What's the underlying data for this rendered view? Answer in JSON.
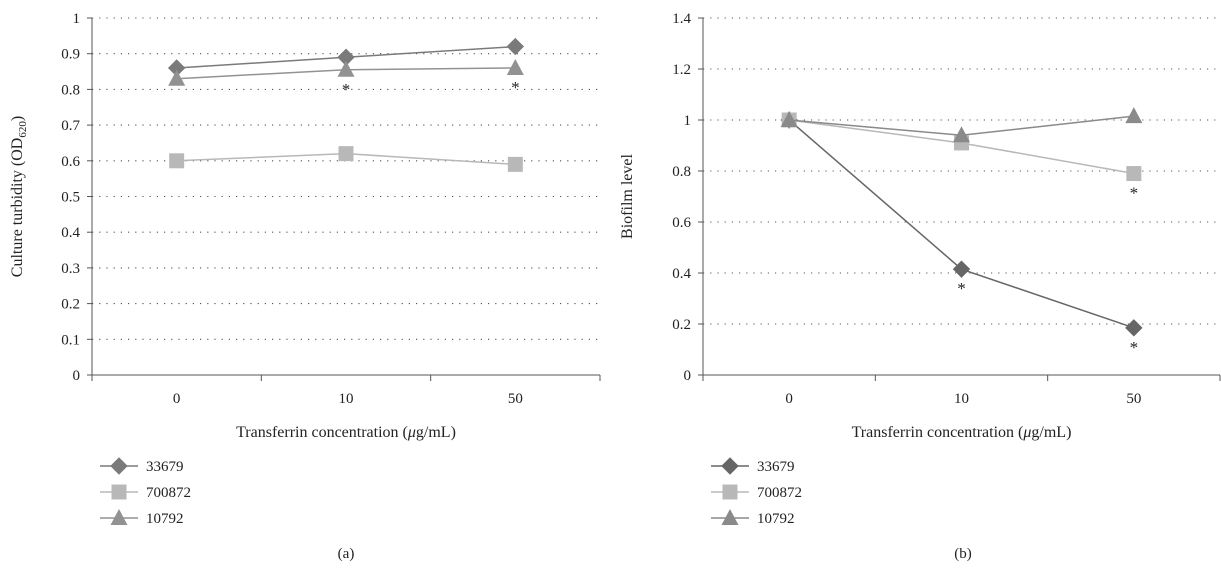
{
  "chart_data": [
    {
      "type": "line",
      "panel_label": "(a)",
      "categories": [
        "0",
        "10",
        "50"
      ],
      "xlabel": "Transferrin concentration (μg/mL)",
      "ylabel": "Culture turbidity (OD620)",
      "ylabel_parts": {
        "main": "Culture turbidity (OD",
        "sub": "620",
        "close": ")"
      },
      "ylim": [
        0,
        1
      ],
      "yticks": [
        "0",
        "0.1",
        "0.2",
        "0.3",
        "0.4",
        "0.5",
        "0.6",
        "0.7",
        "0.8",
        "0.9",
        "1"
      ],
      "grid": "horizontal dotted",
      "legend_position": "bottom-left",
      "series": [
        {
          "name": "33679",
          "marker": "diamond",
          "color": "#7a7a7a",
          "values": [
            0.86,
            0.89,
            0.92
          ],
          "significant": [
            false,
            false,
            false
          ]
        },
        {
          "name": "700872",
          "marker": "square",
          "color": "#b8b8b8",
          "values": [
            0.6,
            0.62,
            0.59
          ],
          "significant": [
            false,
            false,
            false
          ]
        },
        {
          "name": "10792",
          "marker": "triangle",
          "color": "#929292",
          "values": [
            0.83,
            0.855,
            0.86
          ],
          "significant": [
            false,
            true,
            true
          ]
        }
      ],
      "significance_mark": "*"
    },
    {
      "type": "line",
      "panel_label": "(b)",
      "categories": [
        "0",
        "10",
        "50"
      ],
      "xlabel": "Transferrin concentration (μg/mL)",
      "ylabel": "Biofilm level",
      "ylim": [
        0,
        1.4
      ],
      "yticks": [
        "0",
        "0.2",
        "0.4",
        "0.6",
        "0.8",
        "1",
        "1.2",
        "1.4"
      ],
      "grid": "horizontal dotted",
      "legend_position": "bottom-left",
      "series": [
        {
          "name": "33679",
          "marker": "diamond",
          "color": "#666666",
          "values": [
            1.0,
            0.415,
            0.185
          ],
          "significant": [
            false,
            true,
            true
          ]
        },
        {
          "name": "700872",
          "marker": "square",
          "color": "#b8b8b8",
          "values": [
            1.0,
            0.91,
            0.79
          ],
          "significant": [
            false,
            false,
            true
          ]
        },
        {
          "name": "10792",
          "marker": "triangle",
          "color": "#8a8a8a",
          "values": [
            1.0,
            0.94,
            1.015
          ],
          "significant": [
            false,
            false,
            false
          ]
        }
      ],
      "significance_mark": "*"
    }
  ]
}
